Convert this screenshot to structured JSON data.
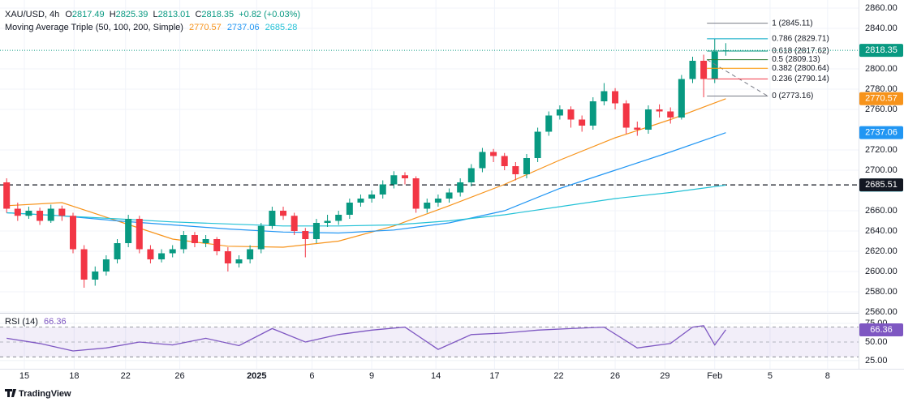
{
  "header": {
    "symbol": "XAU/USD, 4h",
    "ohlc_letters": [
      "O",
      "H",
      "L",
      "C"
    ],
    "change": "+0.82 (+0.03%)",
    "ma_title": "Moving Average Triple (50, 100, 200, Simple)"
  },
  "footer": {
    "brand": "TradingView"
  },
  "chart_data": {
    "type": "candlestick",
    "up_color": "#089981",
    "down_color": "#f23645",
    "open": [
      2688,
      2662,
      2655,
      2660,
      2650,
      2662,
      2655,
      2622,
      2592,
      2600,
      2612,
      2628,
      2652,
      2622,
      2612,
      2618,
      2622,
      2636,
      2628,
      2632,
      2620,
      2608,
      2612,
      2622,
      2645,
      2660,
      2655,
      2640,
      2632,
      2648,
      2650,
      2656,
      2668,
      2672,
      2676,
      2686,
      2695,
      2692,
      2662,
      2668,
      2672,
      2678,
      2688,
      2702,
      2718,
      2714,
      2704,
      2696,
      2712,
      2738,
      2754,
      2760,
      2750,
      2744,
      2768,
      2778,
      2766,
      2742,
      2740,
      2760,
      2758,
      2752,
      2790,
      2808,
      2790,
      2817.49
    ],
    "high": [
      2692,
      2668,
      2664,
      2663,
      2666,
      2665,
      2658,
      2626,
      2605,
      2616,
      2632,
      2656,
      2655,
      2626,
      2622,
      2626,
      2640,
      2639,
      2636,
      2634,
      2624,
      2616,
      2626,
      2648,
      2664,
      2664,
      2658,
      2643,
      2652,
      2656,
      2660,
      2672,
      2676,
      2680,
      2690,
      2699,
      2698,
      2694,
      2672,
      2676,
      2682,
      2692,
      2706,
      2722,
      2721,
      2717,
      2708,
      2716,
      2742,
      2758,
      2764,
      2763,
      2754,
      2772,
      2786,
      2781,
      2769,
      2748,
      2764,
      2765,
      2762,
      2794,
      2812,
      2814,
      2830,
      2825.39
    ],
    "low": [
      2658,
      2650,
      2652,
      2646,
      2648,
      2650,
      2618,
      2584,
      2586,
      2596,
      2608,
      2624,
      2618,
      2608,
      2609,
      2614,
      2618,
      2624,
      2624,
      2616,
      2600,
      2604,
      2608,
      2618,
      2642,
      2651,
      2636,
      2614,
      2628,
      2644,
      2646,
      2652,
      2664,
      2668,
      2672,
      2682,
      2686,
      2658,
      2658,
      2664,
      2668,
      2674,
      2684,
      2698,
      2708,
      2700,
      2690,
      2692,
      2708,
      2734,
      2750,
      2742,
      2738,
      2740,
      2764,
      2760,
      2736,
      2734,
      2736,
      2752,
      2746,
      2750,
      2786,
      2772,
      2786,
      2813.01
    ],
    "close": [
      2662,
      2655,
      2660,
      2650,
      2662,
      2655,
      2622,
      2592,
      2600,
      2612,
      2628,
      2652,
      2622,
      2612,
      2618,
      2622,
      2636,
      2628,
      2632,
      2620,
      2608,
      2612,
      2622,
      2645,
      2660,
      2655,
      2640,
      2632,
      2648,
      2650,
      2656,
      2668,
      2672,
      2676,
      2686,
      2695,
      2692,
      2662,
      2668,
      2672,
      2678,
      2688,
      2702,
      2718,
      2714,
      2704,
      2696,
      2712,
      2738,
      2754,
      2760,
      2750,
      2744,
      2768,
      2778,
      2766,
      2742,
      2740,
      2760,
      2758,
      2752,
      2790,
      2808,
      2790,
      2817,
      2818.35
    ],
    "moving_averages": [
      {
        "color": "#f7931a",
        "x": [
          0,
          5,
          10,
          15,
          20,
          25,
          30,
          35,
          40,
          45,
          50,
          55,
          60,
          65
        ],
        "values": [
          2665,
          2668,
          2650,
          2632,
          2625,
          2624,
          2630,
          2645,
          2665,
          2686,
          2710,
          2732,
          2750,
          2770.57
        ]
      },
      {
        "color": "#2196f3",
        "x": [
          0,
          5,
          10,
          15,
          20,
          25,
          30,
          35,
          40,
          45,
          50,
          55,
          60,
          65
        ],
        "values": [
          2658,
          2655,
          2650,
          2646,
          2642,
          2639,
          2638,
          2641,
          2648,
          2660,
          2682,
          2700,
          2718,
          2737.06
        ]
      },
      {
        "color": "#22c1d6",
        "x": [
          0,
          5,
          10,
          15,
          20,
          25,
          30,
          35,
          40,
          45,
          50,
          55,
          60,
          65
        ],
        "values": [
          2658,
          2655,
          2652,
          2649,
          2647,
          2645,
          2645,
          2646,
          2650,
          2656,
          2664,
          2672,
          2678,
          2685.28
        ]
      }
    ],
    "fibonacci": [
      {
        "value": 2845.11,
        "label": "1 (2845.11)",
        "color": "#787b86"
      },
      {
        "value": 2829.71,
        "label": "0.786 (2829.71)",
        "color": "#00a6c4"
      },
      {
        "value": 2817.62,
        "label": "0.618 (2817.62)",
        "color": "#089981"
      },
      {
        "value": 2809.13,
        "label": "0.5 (2809.13)",
        "color": "#2e7d32"
      },
      {
        "value": 2800.64,
        "label": "0.382 (2800.64)",
        "color": "#ff9800"
      },
      {
        "value": 2790.14,
        "label": "0.236 (2790.14)",
        "color": "#f23645"
      },
      {
        "value": 2773.16,
        "label": "0 (2773.16)",
        "color": "#787b86"
      }
    ],
    "hline": {
      "value": 2685.51,
      "color": "#131722"
    },
    "xlim": [
      -0.6,
      77
    ],
    "ylim": [
      2560,
      2868
    ],
    "yticks": [
      {
        "value": 2860,
        "label": "2860.00"
      },
      {
        "value": 2840,
        "label": "2840.00"
      },
      {
        "value": 2800,
        "label": "2800.00"
      },
      {
        "value": 2780,
        "label": "2780.00"
      },
      {
        "value": 2760,
        "label": "2760.00"
      },
      {
        "value": 2720,
        "label": "2720.00"
      },
      {
        "value": 2700,
        "label": "2700.00"
      },
      {
        "value": 2660,
        "label": "2660.00"
      },
      {
        "value": 2640,
        "label": "2640.00"
      },
      {
        "value": 2620,
        "label": "2620.00"
      },
      {
        "value": 2600,
        "label": "2600.00"
      },
      {
        "value": 2580,
        "label": "2580.00"
      },
      {
        "value": 2560,
        "label": "2560.00"
      }
    ],
    "xticks": [
      {
        "value": 1.6,
        "label": "15"
      },
      {
        "value": 6.1,
        "label": "18"
      },
      {
        "value": 10.75,
        "label": "22"
      },
      {
        "value": 15.65,
        "label": "26"
      },
      {
        "value": 22.6,
        "label": "2025"
      },
      {
        "value": 27.6,
        "label": "6"
      },
      {
        "value": 33,
        "label": "9"
      },
      {
        "value": 38.8,
        "label": "14"
      },
      {
        "value": 44.1,
        "label": "17"
      },
      {
        "value": 49.9,
        "label": "22"
      },
      {
        "value": 55,
        "label": "26"
      },
      {
        "value": 59.5,
        "label": "29"
      },
      {
        "value": 64,
        "label": "Feb"
      },
      {
        "value": 69,
        "label": "5"
      },
      {
        "value": 74.2,
        "label": "8"
      }
    ],
    "grid": true,
    "rsi": {
      "title": "RSI (14)",
      "color": "#7e57c2",
      "x": [
        0,
        3,
        6,
        9,
        12,
        15,
        18,
        21,
        24,
        27,
        30,
        33,
        36,
        39,
        42,
        45,
        48,
        51,
        54,
        57,
        60,
        62,
        63,
        64,
        65
      ],
      "values": [
        55,
        48,
        38,
        42,
        50,
        46,
        55,
        45,
        68,
        50,
        60,
        66,
        70,
        40,
        60,
        62,
        66,
        68,
        70,
        42,
        48,
        70,
        72,
        46,
        66.36
      ],
      "ylim": [
        14,
        87
      ],
      "bands": [
        30,
        70
      ],
      "yticks": [
        {
          "value": 75,
          "label": "75.00"
        },
        {
          "value": 50,
          "label": "50.00"
        },
        {
          "value": 25,
          "label": "25.00"
        }
      ]
    }
  }
}
